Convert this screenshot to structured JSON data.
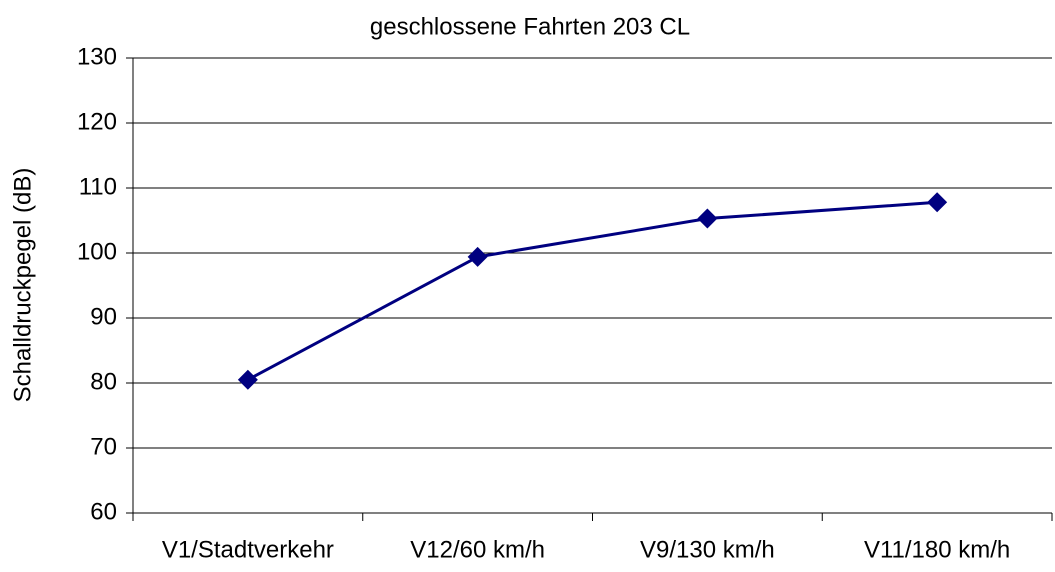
{
  "chart_data": {
    "type": "line",
    "title": "geschlossene Fahrten 203 CL",
    "y_label": "Schalldruckpegel (dB)",
    "categories": [
      "V1/Stadtverkehr",
      "V12/60 km/h",
      "V9/130 km/h",
      "V11/180 km/h"
    ],
    "values": [
      80.5,
      99.4,
      105.3,
      107.8
    ],
    "color": "#000080",
    "ylim": [
      60,
      130
    ],
    "yticks": [
      60,
      70,
      80,
      90,
      100,
      110,
      120,
      130
    ],
    "grid": true
  }
}
